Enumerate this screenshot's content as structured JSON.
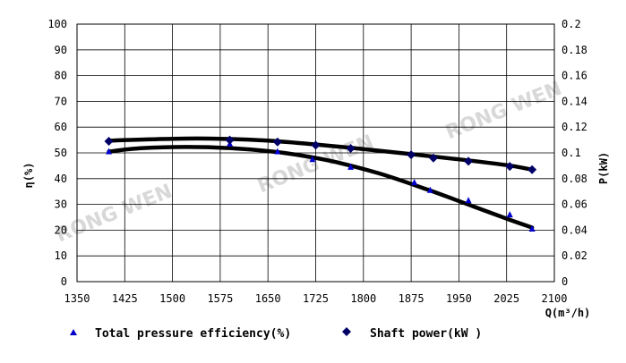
{
  "chart_data": {
    "type": "line",
    "xlabel": "Q(m³/h)",
    "ylabel_left": "η(%)",
    "ylabel_right": "P(kW)",
    "x_ticks": [
      "1350",
      "1425",
      "1500",
      "1575",
      "1650",
      "1725",
      "1800",
      "1875",
      "1950",
      "2025",
      "2100"
    ],
    "y_left_ticks": [
      "0",
      "10",
      "20",
      "30",
      "40",
      "50",
      "60",
      "70",
      "80",
      "90",
      "100"
    ],
    "y_right_ticks": [
      "0",
      "0.02",
      "0.04",
      "0.06",
      "0.08",
      "0.1",
      "0.12",
      "0.14",
      "0.16",
      "0.18",
      "0.2"
    ],
    "xlim": [
      1350,
      2100
    ],
    "ylim_left": [
      0,
      100
    ],
    "ylim_right": [
      0,
      0.2
    ],
    "grid": true,
    "legend_position": "bottom",
    "series": [
      {
        "name": "Total pressure efficiency(%)",
        "axis": "left",
        "marker": "triangle",
        "marker_color": "#0000cc",
        "points": [
          [
            1400,
            50.5
          ],
          [
            1590,
            53.5
          ],
          [
            1665,
            50.5
          ],
          [
            1720,
            47.5
          ],
          [
            1780,
            44.5
          ],
          [
            1880,
            38.5
          ],
          [
            1905,
            35.5
          ],
          [
            1965,
            31.5
          ],
          [
            2030,
            26
          ],
          [
            2065,
            20.5
          ]
        ],
        "curve": [
          [
            1400,
            50.5
          ],
          [
            1450,
            51.8
          ],
          [
            1525,
            52.3
          ],
          [
            1600,
            51.7
          ],
          [
            1675,
            50
          ],
          [
            1750,
            46.8
          ],
          [
            1825,
            42
          ],
          [
            1900,
            35.8
          ],
          [
            1975,
            29
          ],
          [
            2030,
            24
          ],
          [
            2065,
            21
          ]
        ]
      },
      {
        "name": "Shaft power(kW )",
        "axis": "right",
        "marker": "diamond",
        "marker_color": "#000066",
        "points": [
          [
            1400,
            0.109
          ],
          [
            1590,
            0.11
          ],
          [
            1665,
            0.1085
          ],
          [
            1725,
            0.106
          ],
          [
            1780,
            0.1035
          ],
          [
            1875,
            0.0985
          ],
          [
            1910,
            0.096
          ],
          [
            1965,
            0.0935
          ],
          [
            2030,
            0.0895
          ],
          [
            2065,
            0.087
          ]
        ],
        "curve": [
          [
            1400,
            0.1095
          ],
          [
            1500,
            0.111
          ],
          [
            1575,
            0.111
          ],
          [
            1650,
            0.1095
          ],
          [
            1725,
            0.1065
          ],
          [
            1800,
            0.103
          ],
          [
            1875,
            0.099
          ],
          [
            1950,
            0.095
          ],
          [
            2025,
            0.0905
          ],
          [
            2065,
            0.087
          ]
        ]
      }
    ]
  },
  "watermark": "RONG WEN",
  "colors": {
    "curve": "#000000",
    "grid": "#000000"
  }
}
